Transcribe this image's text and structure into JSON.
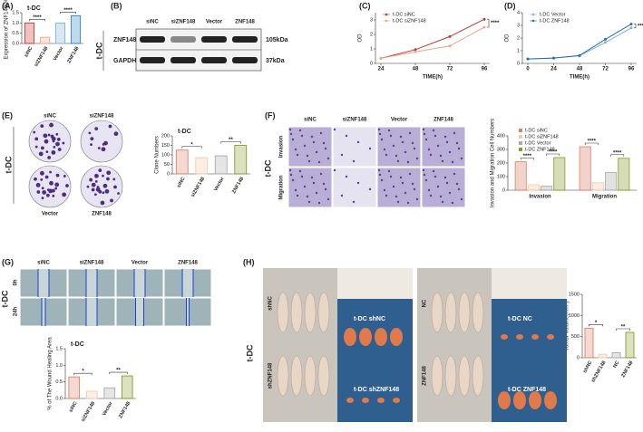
{
  "chart_data": [
    {
      "type": "bar",
      "label": "(A)",
      "title": "t-DC",
      "ylabel": "Expression of ZNF148(%)",
      "categories": [
        "siNC",
        "siZNF148",
        "Vector",
        "ZNF148"
      ],
      "values": [
        1.0,
        0.3,
        1.0,
        1.35
      ],
      "colors": [
        "#c0392b",
        "#f0a58a",
        "#7fb3d5",
        "#2e86c1"
      ],
      "ylim": [
        0,
        1.5
      ],
      "yticks": [
        {
          "value": 0,
          "label": "0.0"
        },
        {
          "value": 0.5,
          "label": "0.5"
        },
        {
          "value": 1,
          "label": "1.0"
        },
        {
          "value": 1.5,
          "label": "1.5"
        }
      ],
      "annotations": [
        "****",
        "****"
      ]
    },
    {
      "type": "line",
      "label": "(C)",
      "xlabel": "TIME(h)",
      "ylabel": "OD",
      "x": [
        24,
        48,
        72,
        96
      ],
      "xlim": [
        24,
        96
      ],
      "xticks": [
        24,
        48,
        72,
        96
      ],
      "ylim": [
        0,
        3.5
      ],
      "yticks": [
        0,
        1,
        2,
        3
      ],
      "series": [
        {
          "name": "t-DC siNC",
          "color": "#c0392b",
          "values": [
            0.35,
            0.95,
            1.85,
            3.05
          ]
        },
        {
          "name": "t-DC siZNF148",
          "color": "#f0a58a",
          "values": [
            0.35,
            0.8,
            1.2,
            2.5
          ]
        }
      ],
      "annotations": [
        "****"
      ]
    },
    {
      "type": "line",
      "label": "(D)",
      "xlabel": "TIME(h)",
      "ylabel": "OD",
      "x": [
        0,
        24,
        48,
        72,
        96
      ],
      "xlim": [
        0,
        96
      ],
      "xticks": [
        0,
        24,
        48,
        72,
        96
      ],
      "ylim": [
        0,
        4
      ],
      "yticks": [
        0,
        1,
        2,
        3,
        4
      ],
      "series": [
        {
          "name": "t-DC Vector",
          "color": "#7fb3d5",
          "values": [
            0.35,
            0.42,
            0.6,
            1.65,
            2.8
          ]
        },
        {
          "name": "t-DC ZNF148",
          "color": "#2e6da4",
          "values": [
            0.35,
            0.42,
            0.62,
            1.9,
            3.1
          ]
        }
      ],
      "annotations": [
        "****"
      ]
    },
    {
      "type": "bar",
      "title": "t-DC",
      "ylabel": "Clone Numbers",
      "categories": [
        "siNC",
        "siZNF148",
        "Vector",
        "ZNF148"
      ],
      "values": [
        125,
        85,
        95,
        150
      ],
      "colors": [
        "#d9826a",
        "#f3c9a8",
        "#a9a9a9",
        "#8a9a2b"
      ],
      "ylim": [
        0,
        200
      ],
      "yticks": [
        0,
        50,
        100,
        150,
        200
      ],
      "annotations": [
        "*",
        "**"
      ]
    },
    {
      "type": "bar",
      "ylabel": "Invasion and Migration Cell Numbers",
      "categories": [
        "Invasion",
        "Migration"
      ],
      "series": [
        {
          "name": "t-DC siNC",
          "color": "#d9826a",
          "values": [
            210,
            320
          ]
        },
        {
          "name": "t-DC siZNF148",
          "color": "#f3c9a8",
          "values": [
            40,
            55
          ]
        },
        {
          "name": "t-DC Vector",
          "color": "#a9a9a9",
          "values": [
            30,
            130
          ]
        },
        {
          "name": "t-DC ZNF148",
          "color": "#8a9a2b",
          "values": [
            240,
            235
          ]
        }
      ],
      "ylim": [
        0,
        400
      ],
      "yticks": [
        0,
        100,
        200,
        300,
        400
      ],
      "annotations": [
        "****",
        "****",
        "****",
        "****"
      ]
    },
    {
      "type": "bar",
      "title": "t-DC",
      "ylabel": "% of The Wound Healing Area",
      "categories": [
        "siNC",
        "siZNF148",
        "Vector",
        "ZNF148"
      ],
      "values": [
        0.65,
        0.22,
        0.32,
        0.68
      ],
      "colors": [
        "#d9826a",
        "#f3c9a8",
        "#a9a9a9",
        "#8a9a2b"
      ],
      "ylim": [
        0,
        1.5
      ],
      "yticks": [
        {
          "value": 0,
          "label": "0.0"
        },
        {
          "value": 0.5,
          "label": "0.5"
        },
        {
          "value": 1,
          "label": "1.0"
        },
        {
          "value": 1.5,
          "label": "1.5"
        }
      ],
      "annotations": [
        "*",
        "**"
      ]
    },
    {
      "type": "bar",
      "ylabel": "Tumor Volume(mm³)",
      "categories": [
        "shNC",
        "shZNF148",
        "NC",
        "ZNF148"
      ],
      "values": [
        700,
        80,
        120,
        600
      ],
      "colors": [
        "#d9826a",
        "#f3c9a8",
        "#a9a9a9",
        "#8a9a2b"
      ],
      "ylim": [
        0,
        1500
      ],
      "yticks": [
        0,
        500,
        1000,
        1500
      ],
      "annotations": [
        "*",
        "**"
      ]
    }
  ],
  "blot": {
    "label": "(B)",
    "group": "t-DC",
    "lanes": [
      "siNC",
      "siZNF148",
      "Vector",
      "ZNF148"
    ],
    "rows": [
      {
        "name": "ZNF148",
        "size": "105kDa"
      },
      {
        "name": "GAPDH",
        "size": "37kDa"
      }
    ]
  },
  "colony": {
    "label": "(E)",
    "group": "t-DC",
    "top": [
      "siNC",
      "siZNF148"
    ],
    "bottom": [
      "Vector",
      "ZNF148"
    ]
  },
  "transwell": {
    "label": "(F)",
    "group": "t-DC",
    "columns": [
      "siNC",
      "siZNF148",
      "Vector",
      "ZNF148"
    ],
    "rows": [
      "Invasion",
      "Migration"
    ]
  },
  "wound": {
    "label": "(G)",
    "group": "t-DC",
    "columns": [
      "siNC",
      "siZNF148",
      "Vector",
      "ZNF148"
    ],
    "rows": [
      "0h",
      "24h"
    ]
  },
  "tumor": {
    "label": "(H)",
    "group": "t-DC",
    "left_rows": [
      "shNC",
      "shZNF148"
    ],
    "left_tags": [
      "t-DC shNC",
      "t-DC shZNF148"
    ],
    "right_rows": [
      "NC",
      "ZNF148"
    ],
    "right_tags": [
      "t-DC NC",
      "t-DC ZNF148"
    ]
  }
}
